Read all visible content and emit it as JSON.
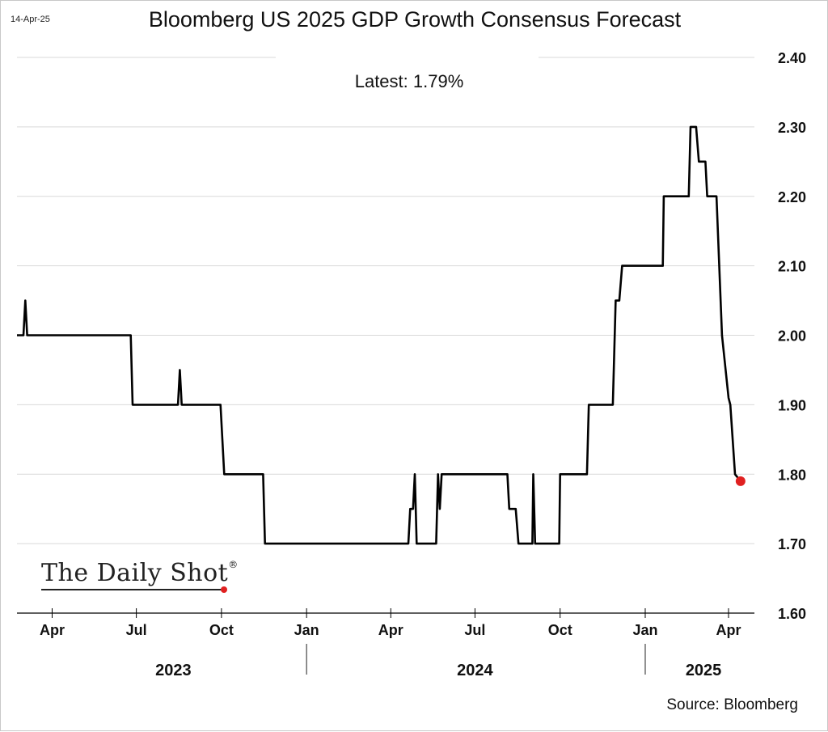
{
  "header": {
    "date_stamp": "14-Apr-25",
    "title": "Bloomberg US 2025 GDP Growth Consensus Forecast",
    "latest": "Latest:  1.79%"
  },
  "footer": {
    "source": "Source: Bloomberg",
    "logo_text": "The Daily Shot",
    "logo_mark": "®"
  },
  "colors": {
    "line": "#000000",
    "marker": "#e02020",
    "grid": "#d9d9d9"
  },
  "chart_data": {
    "type": "line",
    "title": "Bloomberg US 2025 GDP Growth Consensus Forecast",
    "annotation": "Latest:  1.79%",
    "xlabel": "",
    "ylabel": "",
    "ylim": [
      1.6,
      2.4
    ],
    "xlim": [
      "2023-02-22",
      "2025-04-29"
    ],
    "y_ticks": [
      {
        "value": 1.6,
        "label": "1.60"
      },
      {
        "value": 1.7,
        "label": "1.70"
      },
      {
        "value": 1.8,
        "label": "1.80"
      },
      {
        "value": 1.9,
        "label": "1.90"
      },
      {
        "value": 2.0,
        "label": "2.00"
      },
      {
        "value": 2.1,
        "label": "2.10"
      },
      {
        "value": 2.2,
        "label": "2.20"
      },
      {
        "value": 2.3,
        "label": "2.30"
      },
      {
        "value": 2.4,
        "label": "2.40"
      }
    ],
    "y_axis_position": "right",
    "grid": "horizontal",
    "x_ticks": [
      {
        "date": "2023-04-01",
        "label": "Apr"
      },
      {
        "date": "2023-07-01",
        "label": "Jul"
      },
      {
        "date": "2023-10-01",
        "label": "Oct"
      },
      {
        "date": "2024-01-01",
        "label": "Jan"
      },
      {
        "date": "2024-04-01",
        "label": "Apr"
      },
      {
        "date": "2024-07-01",
        "label": "Jul"
      },
      {
        "date": "2024-10-01",
        "label": "Oct"
      },
      {
        "date": "2025-01-01",
        "label": "Jan"
      },
      {
        "date": "2025-04-01",
        "label": "Apr"
      }
    ],
    "year_labels": [
      {
        "label": "2023",
        "center": "2023-08-10"
      },
      {
        "label": "2024",
        "center": "2024-07-01"
      },
      {
        "label": "2025",
        "center": "2025-03-05"
      }
    ],
    "year_separators": [
      "2024-01-01",
      "2025-01-01"
    ],
    "series": [
      {
        "points": [
          [
            "2023-02-22",
            2.0
          ],
          [
            "2023-02-29",
            2.0
          ],
          [
            "2023-03-03",
            2.05
          ],
          [
            "2023-03-05",
            2.0
          ],
          [
            "2023-06-25",
            2.0
          ],
          [
            "2023-06-27",
            1.9
          ],
          [
            "2023-08-15",
            1.9
          ],
          [
            "2023-08-17",
            1.95
          ],
          [
            "2023-08-19",
            1.9
          ],
          [
            "2023-09-30",
            1.9
          ],
          [
            "2023-10-02",
            1.85
          ],
          [
            "2023-10-04",
            1.8
          ],
          [
            "2023-11-15",
            1.8
          ],
          [
            "2023-11-17",
            1.7
          ],
          [
            "2024-04-20",
            1.7
          ],
          [
            "2024-04-22",
            1.75
          ],
          [
            "2024-04-25",
            1.75
          ],
          [
            "2024-04-27",
            1.8
          ],
          [
            "2024-04-29",
            1.7
          ],
          [
            "2024-05-20",
            1.7
          ],
          [
            "2024-05-22",
            1.8
          ],
          [
            "2024-05-24",
            1.75
          ],
          [
            "2024-05-26",
            1.8
          ],
          [
            "2024-06-25",
            1.8
          ],
          [
            "2024-06-27",
            1.8
          ],
          [
            "2024-07-06",
            1.8
          ],
          [
            "2024-07-08",
            1.8
          ],
          [
            "2024-08-05",
            1.8
          ],
          [
            "2024-08-07",
            1.75
          ],
          [
            "2024-08-14",
            1.75
          ],
          [
            "2024-08-17",
            1.7
          ],
          [
            "2024-09-01",
            1.7
          ],
          [
            "2024-09-02",
            1.8
          ],
          [
            "2024-09-04",
            1.7
          ],
          [
            "2024-09-30",
            1.7
          ],
          [
            "2024-10-01",
            1.8
          ],
          [
            "2024-10-30",
            1.8
          ],
          [
            "2024-11-01",
            1.9
          ],
          [
            "2024-11-27",
            1.9
          ],
          [
            "2024-11-30",
            2.05
          ],
          [
            "2024-12-04",
            2.05
          ],
          [
            "2024-12-07",
            2.1
          ],
          [
            "2025-01-20",
            2.1
          ],
          [
            "2025-01-21",
            2.2
          ],
          [
            "2025-02-17",
            2.2
          ],
          [
            "2025-02-19",
            2.3
          ],
          [
            "2025-02-25",
            2.3
          ],
          [
            "2025-02-28",
            2.25
          ],
          [
            "2025-03-07",
            2.25
          ],
          [
            "2025-03-09",
            2.2
          ],
          [
            "2025-03-19",
            2.2
          ],
          [
            "2025-03-25",
            2.0
          ],
          [
            "2025-04-01",
            1.91
          ],
          [
            "2025-04-03",
            1.9
          ],
          [
            "2025-04-08",
            1.8
          ],
          [
            "2025-04-14",
            1.79
          ]
        ]
      }
    ],
    "latest_marker": {
      "date": "2025-04-14",
      "value": 1.79
    }
  }
}
